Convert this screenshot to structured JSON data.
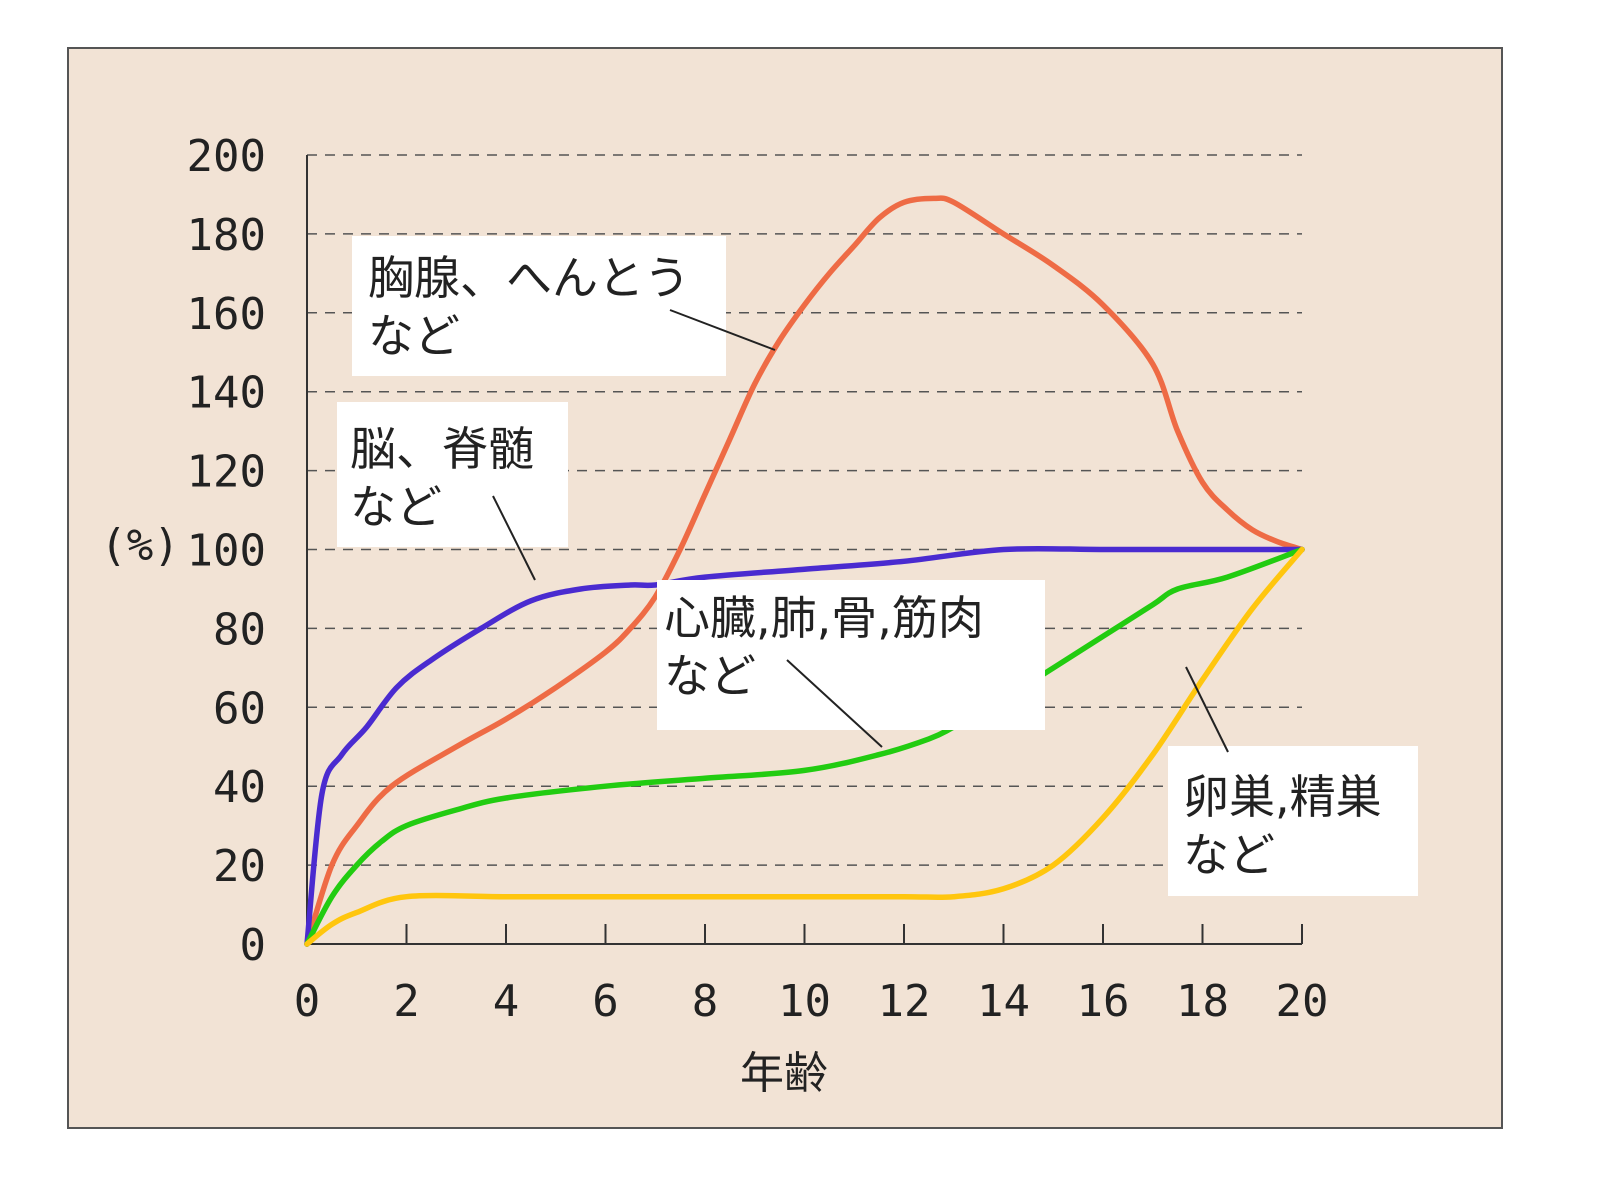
{
  "colors": {
    "background": "#f2e3d5",
    "frame": "#555555",
    "grid": "#555555",
    "axis": "#333333",
    "text": "#222222",
    "label_box": "#ffffff"
  },
  "chart_data": {
    "type": "line",
    "xlabel": "年齢",
    "ylabel": "(%)",
    "xlim": [
      0,
      20
    ],
    "ylim": [
      0,
      200
    ],
    "x_ticks": [
      "0",
      "2",
      "4",
      "6",
      "8",
      "10",
      "12",
      "14",
      "16",
      "18",
      "20"
    ],
    "y_ticks": [
      "0",
      "20",
      "40",
      "60",
      "80",
      "100",
      "120",
      "140",
      "160",
      "180",
      "200"
    ],
    "grid": "horizontal dashed",
    "series": [
      {
        "color": "#ee6b45",
        "label_lines": [
          "胸腺、へんとう",
          "など"
        ],
        "points": [
          [
            0,
            0
          ],
          [
            0.5,
            20
          ],
          [
            1,
            30
          ],
          [
            1.7,
            40
          ],
          [
            3,
            50
          ],
          [
            4,
            57
          ],
          [
            5,
            65
          ],
          [
            6,
            74
          ],
          [
            6.5,
            80
          ],
          [
            7,
            88
          ],
          [
            7.5,
            100
          ],
          [
            8,
            114
          ],
          [
            8.5,
            128
          ],
          [
            9,
            142
          ],
          [
            9.5,
            153
          ],
          [
            10,
            162
          ],
          [
            10.5,
            170
          ],
          [
            11,
            177
          ],
          [
            11.5,
            184
          ],
          [
            12,
            188
          ],
          [
            12.6,
            189
          ],
          [
            13,
            188
          ],
          [
            14,
            180
          ],
          [
            15,
            172
          ],
          [
            16,
            162
          ],
          [
            17,
            147
          ],
          [
            17.5,
            130
          ],
          [
            18,
            117
          ],
          [
            18.5,
            110
          ],
          [
            19,
            105
          ],
          [
            19.5,
            102
          ],
          [
            20,
            100
          ]
        ]
      },
      {
        "color": "#4a2bd0",
        "label_lines": [
          "脳、脊髄",
          "など"
        ],
        "points": [
          [
            0,
            0
          ],
          [
            0.3,
            38
          ],
          [
            0.7,
            48
          ],
          [
            1.2,
            55
          ],
          [
            1.8,
            65
          ],
          [
            2.5,
            72
          ],
          [
            3.5,
            80
          ],
          [
            4.5,
            87
          ],
          [
            5.5,
            90
          ],
          [
            6.5,
            91
          ],
          [
            7,
            91
          ],
          [
            8,
            93
          ],
          [
            10,
            95
          ],
          [
            12,
            97
          ],
          [
            14,
            100
          ],
          [
            16,
            100
          ],
          [
            18,
            100
          ],
          [
            20,
            100
          ]
        ]
      },
      {
        "color": "#22cc11",
        "label_lines": [
          "心臓,肺,骨,筋肉",
          "など"
        ],
        "points": [
          [
            0,
            0
          ],
          [
            0.5,
            12
          ],
          [
            1,
            20
          ],
          [
            1.5,
            26
          ],
          [
            2,
            30
          ],
          [
            3,
            34
          ],
          [
            4,
            37
          ],
          [
            6,
            40
          ],
          [
            8,
            42
          ],
          [
            10,
            44
          ],
          [
            11.5,
            48
          ],
          [
            12.5,
            52
          ],
          [
            13,
            55
          ],
          [
            14,
            62
          ],
          [
            15,
            70
          ],
          [
            16,
            78
          ],
          [
            17,
            86
          ],
          [
            17.5,
            90
          ],
          [
            18.5,
            93
          ],
          [
            20,
            100
          ]
        ]
      },
      {
        "color": "#ffc60e",
        "label_lines": [
          "卵巣,精巣",
          "など"
        ],
        "points": [
          [
            0,
            0
          ],
          [
            0.5,
            5
          ],
          [
            1,
            8
          ],
          [
            2,
            12
          ],
          [
            4,
            12
          ],
          [
            6,
            12
          ],
          [
            8,
            12
          ],
          [
            10,
            12
          ],
          [
            12,
            12
          ],
          [
            13,
            12
          ],
          [
            14,
            14
          ],
          [
            15,
            20
          ],
          [
            16,
            32
          ],
          [
            17,
            48
          ],
          [
            18,
            67
          ],
          [
            19,
            85
          ],
          [
            20,
            100
          ]
        ]
      }
    ]
  }
}
